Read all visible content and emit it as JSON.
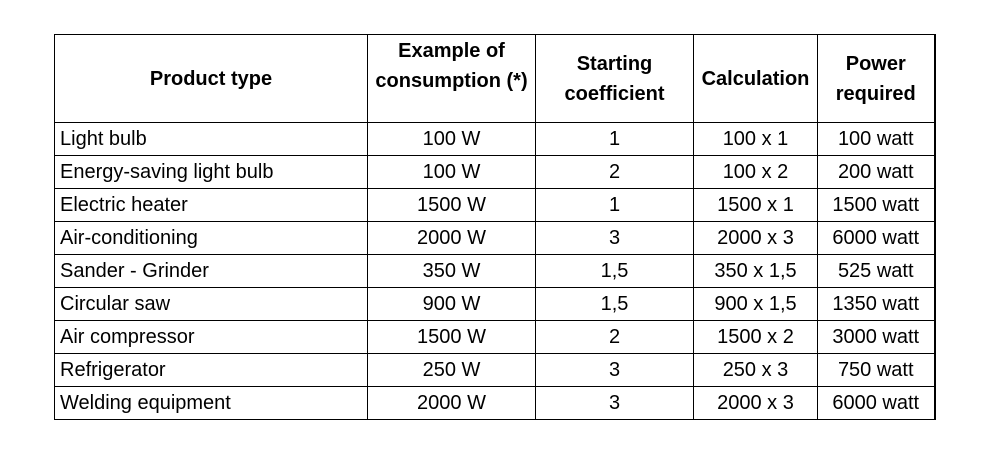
{
  "table": {
    "headers": {
      "product_type": "Product type",
      "consumption": "Example of consumption (*)",
      "coefficient": "Starting coefficient",
      "calculation": "Calculation",
      "power": "Power required"
    },
    "rows": [
      {
        "product": "Light bulb",
        "consumption": "100 W",
        "coefficient": "1",
        "calculation": "100 x 1",
        "power": "100 watt"
      },
      {
        "product": "Energy-saving light bulb",
        "consumption": "100 W",
        "coefficient": "2",
        "calculation": "100 x 2",
        "power": "200 watt"
      },
      {
        "product": "Electric heater",
        "consumption": "1500 W",
        "coefficient": "1",
        "calculation": "1500 x 1",
        "power": "1500 watt"
      },
      {
        "product": "Air-conditioning",
        "consumption": "2000 W",
        "coefficient": "3",
        "calculation": "2000 x 3",
        "power": "6000 watt"
      },
      {
        "product": "Sander - Grinder",
        "consumption": "350 W",
        "coefficient": "1,5",
        "calculation": "350 x 1,5",
        "power": "525 watt"
      },
      {
        "product": "Circular saw",
        "consumption": "900 W",
        "coefficient": "1,5",
        "calculation": "900 x 1,5",
        "power": "1350 watt"
      },
      {
        "product": "Air compressor",
        "consumption": "1500 W",
        "coefficient": "2",
        "calculation": "1500 x 2",
        "power": "3000 watt"
      },
      {
        "product": "Refrigerator",
        "consumption": "250 W",
        "coefficient": "3",
        "calculation": "250 x 3",
        "power": "750 watt"
      },
      {
        "product": "Welding equipment",
        "consumption": "2000 W",
        "coefficient": "3",
        "calculation": "2000 x 3",
        "power": "6000 watt"
      }
    ]
  }
}
